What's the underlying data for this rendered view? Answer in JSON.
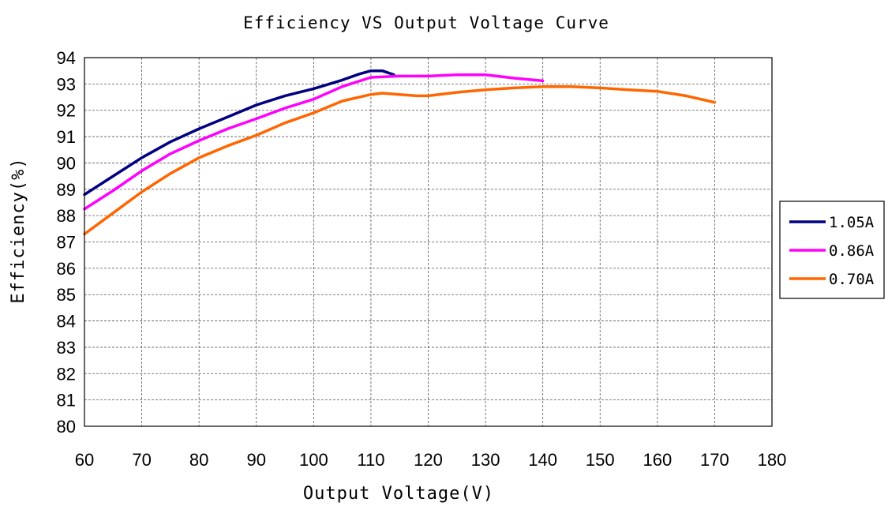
{
  "chart_data": {
    "type": "line",
    "title": "Efficiency VS Output Voltage Curve",
    "xlabel": "Output Voltage(V)",
    "ylabel": "Efficiency(%)",
    "xlim": [
      60,
      180
    ],
    "ylim": [
      80,
      94
    ],
    "x_ticks": [
      60,
      70,
      80,
      90,
      100,
      110,
      120,
      130,
      140,
      150,
      160,
      170,
      180
    ],
    "y_ticks": [
      80,
      81,
      82,
      83,
      84,
      85,
      86,
      87,
      88,
      89,
      90,
      91,
      92,
      93,
      94
    ],
    "grid": true,
    "grid_style": "dashed",
    "legend_position": "right",
    "series": [
      {
        "name": "1.05A",
        "color": "#000080",
        "x": [
          60,
          65,
          70,
          75,
          80,
          85,
          90,
          95,
          100,
          105,
          108,
          110,
          112,
          114
        ],
        "y": [
          88.8,
          89.5,
          90.2,
          90.8,
          91.3,
          91.75,
          92.2,
          92.55,
          92.82,
          93.15,
          93.38,
          93.5,
          93.5,
          93.35
        ]
      },
      {
        "name": "0.86A",
        "color": "#ff00ff",
        "x": [
          60,
          65,
          70,
          75,
          80,
          85,
          90,
          95,
          100,
          105,
          110,
          115,
          120,
          125,
          130,
          135,
          140
        ],
        "y": [
          88.25,
          88.95,
          89.7,
          90.35,
          90.85,
          91.3,
          91.68,
          92.08,
          92.42,
          92.9,
          93.25,
          93.3,
          93.3,
          93.35,
          93.35,
          93.22,
          93.12
        ]
      },
      {
        "name": "0.70A",
        "color": "#ff6600",
        "x": [
          60,
          65,
          70,
          75,
          80,
          85,
          90,
          95,
          100,
          105,
          110,
          112,
          115,
          118,
          120,
          125,
          130,
          135,
          140,
          145,
          150,
          155,
          160,
          165,
          170
        ],
        "y": [
          87.3,
          88.1,
          88.9,
          89.6,
          90.2,
          90.65,
          91.05,
          91.52,
          91.9,
          92.35,
          92.6,
          92.65,
          92.6,
          92.55,
          92.55,
          92.68,
          92.78,
          92.85,
          92.9,
          92.9,
          92.85,
          92.78,
          92.72,
          92.55,
          92.3
        ]
      }
    ]
  }
}
